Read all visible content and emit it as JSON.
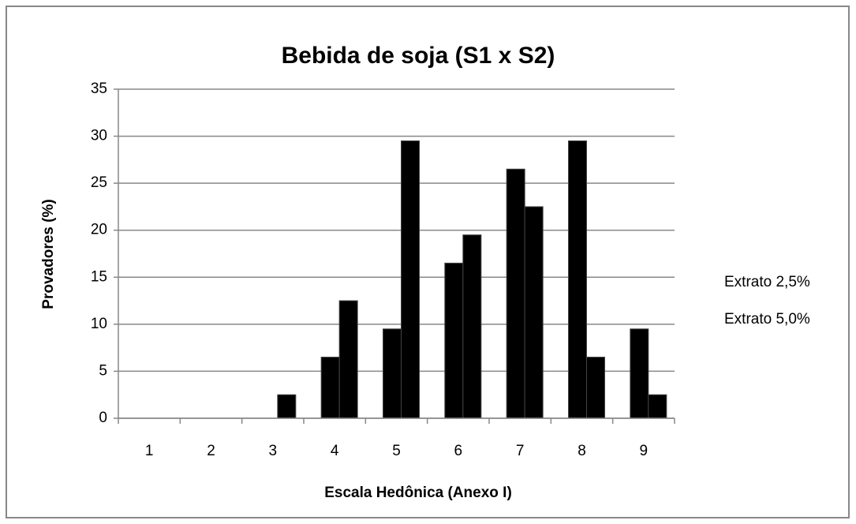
{
  "chart_data": {
    "type": "bar",
    "title": "Bebida de soja (S1 x S2)",
    "xlabel": "Escala Hedônica (Anexo I)",
    "ylabel": "Provadores (%)",
    "categories": [
      "1",
      "2",
      "3",
      "4",
      "5",
      "6",
      "7",
      "8",
      "9"
    ],
    "series": [
      {
        "name": "Extrato 2,5%",
        "color": "#000000",
        "values": [
          0,
          0,
          0,
          6.5,
          9.5,
          16.5,
          26.5,
          29.5,
          9.5
        ]
      },
      {
        "name": "Extrato 5,0%",
        "color": "#000000",
        "values": [
          0,
          0,
          2.5,
          12.5,
          29.5,
          19.5,
          22.5,
          6.5,
          2.5
        ]
      }
    ],
    "ylim": [
      0,
      35
    ],
    "yticks": [
      0,
      5,
      10,
      15,
      20,
      25,
      30,
      35
    ],
    "grid": true,
    "legend": "right"
  }
}
